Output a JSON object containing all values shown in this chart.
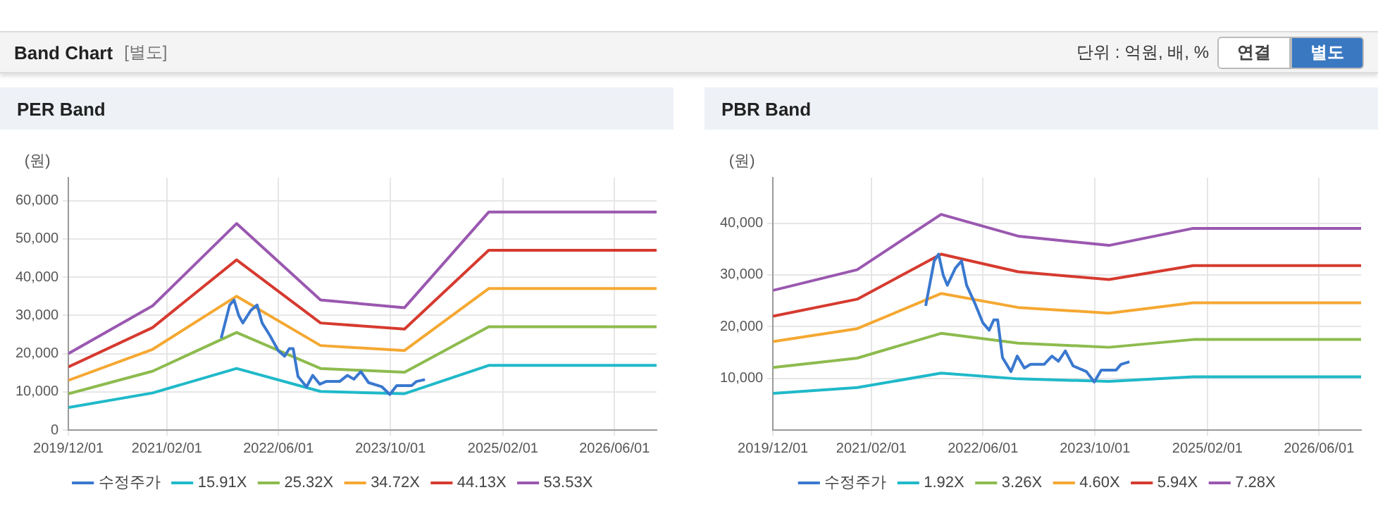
{
  "chart_data": [
    {
      "type": "other",
      "title": "Band Chart",
      "annotations": [
        "[별도]",
        "단위 : 억원, 배, %",
        "연결",
        "별도"
      ]
    },
    {
      "type": "line",
      "title": "PER Band",
      "ylabel": "(원)",
      "xlim": [
        "2019-12-01",
        "2026-12-01"
      ],
      "xticks": [
        {
          "value": "2019-12-01",
          "label": "2019/12/01"
        },
        {
          "value": "2021-02-01",
          "label": "2021/02/01"
        },
        {
          "value": "2022-06-01",
          "label": "2022/06/01"
        },
        {
          "value": "2023-10-01",
          "label": "2023/10/01"
        },
        {
          "value": "2025-02-01",
          "label": "2025/02/01"
        },
        {
          "value": "2026-06-01",
          "label": "2026/06/01"
        }
      ],
      "ylim": [
        0,
        66000
      ],
      "yticks": [
        0,
        {
          "value": 10000,
          "label": "10,000"
        },
        {
          "value": 20000,
          "label": "20,000"
        },
        {
          "value": 30000,
          "label": "30,000"
        },
        {
          "value": 40000,
          "label": "40,000"
        },
        {
          "value": 50000,
          "label": "50,000"
        },
        {
          "value": 60000,
          "label": "60,000"
        }
      ],
      "grid": true,
      "legend": "bottom",
      "marker": "none",
      "line_style": "solid",
      "series": [
        {
          "name": "수정주가",
          "color": "#3a78cf",
          "x": [
            "2021-09-25",
            "2021-11-01",
            "2021-11-20",
            "2021-12-10",
            "2021-12-28",
            "2022-02-01",
            "2022-02-28",
            "2022-03-22",
            "2022-04-25",
            "2022-06-01",
            "2022-06-28",
            "2022-07-18",
            "2022-08-04",
            "2022-08-25",
            "2022-10-01",
            "2022-10-28",
            "2022-11-28",
            "2022-12-25",
            "2023-02-22",
            "2023-03-28",
            "2023-04-25",
            "2023-05-25",
            "2023-06-28",
            "2023-08-25",
            "2023-09-28",
            "2023-10-28",
            "2024-01-01",
            "2024-01-22",
            "2024-02-28"
          ],
          "values": [
            24000,
            32700,
            34000,
            30000,
            28000,
            31300,
            32700,
            28000,
            24700,
            20700,
            19300,
            21300,
            21300,
            14000,
            11300,
            14300,
            12000,
            12700,
            12700,
            14300,
            13300,
            15300,
            12400,
            11300,
            9300,
            11600,
            11600,
            12700,
            13200
          ]
        },
        {
          "name": "15.91X",
          "color": "#1fb9c9",
          "x": [
            "2019-12-01",
            "2020-12-01",
            "2021-12-01",
            "2022-12-01",
            "2023-12-01",
            "2024-12-01",
            "2026-12-01"
          ],
          "values": [
            5900,
            9700,
            16100,
            10100,
            9500,
            16900,
            16900
          ]
        },
        {
          "name": "25.32X",
          "color": "#8dbb4e",
          "x": [
            "2019-12-01",
            "2020-12-01",
            "2021-12-01",
            "2022-12-01",
            "2023-12-01",
            "2024-12-01",
            "2026-12-01"
          ],
          "values": [
            9500,
            15400,
            25500,
            16100,
            15100,
            27000,
            27000
          ]
        },
        {
          "name": "34.72X",
          "color": "#f5a832",
          "x": [
            "2019-12-01",
            "2020-12-01",
            "2021-12-01",
            "2022-12-01",
            "2023-12-01",
            "2024-12-01",
            "2026-12-01"
          ],
          "values": [
            13000,
            21100,
            35000,
            22100,
            20800,
            37000,
            37000
          ]
        },
        {
          "name": "44.13X",
          "color": "#d63a2f",
          "x": [
            "2019-12-01",
            "2020-12-01",
            "2021-12-01",
            "2022-12-01",
            "2023-12-01",
            "2024-12-01",
            "2026-12-01"
          ],
          "values": [
            16500,
            26800,
            44500,
            28000,
            26400,
            47000,
            47000
          ]
        },
        {
          "name": "53.53X",
          "color": "#9a58b0",
          "x": [
            "2019-12-01",
            "2020-12-01",
            "2021-12-01",
            "2022-12-01",
            "2023-12-01",
            "2024-12-01",
            "2026-12-01"
          ],
          "values": [
            20000,
            32500,
            54000,
            34000,
            32000,
            57000,
            57000
          ]
        }
      ]
    },
    {
      "type": "line",
      "title": "PBR Band",
      "ylabel": "(원)",
      "xlim": [
        "2019-12-01",
        "2026-12-01"
      ],
      "xticks": [
        {
          "value": "2019-12-01",
          "label": "2019/12/01"
        },
        {
          "value": "2021-02-01",
          "label": "2021/02/01"
        },
        {
          "value": "2022-06-01",
          "label": "2022/06/01"
        },
        {
          "value": "2023-10-01",
          "label": "2023/10/01"
        },
        {
          "value": "2025-02-01",
          "label": "2025/02/01"
        },
        {
          "value": "2026-06-01",
          "label": "2026/06/01"
        }
      ],
      "ylim": [
        0,
        48800
      ],
      "yticks": [
        {
          "value": 10000,
          "label": "10,000"
        },
        {
          "value": 20000,
          "label": "20,000"
        },
        {
          "value": 30000,
          "label": "30,000"
        },
        {
          "value": 40000,
          "label": "40,000"
        }
      ],
      "grid": true,
      "legend": "bottom",
      "marker": "none",
      "line_style": "solid",
      "series": [
        {
          "name": "수정주가",
          "color": "#3a78cf",
          "x": [
            "2021-09-25",
            "2021-11-01",
            "2021-11-20",
            "2021-12-10",
            "2021-12-28",
            "2022-02-01",
            "2022-02-28",
            "2022-03-22",
            "2022-04-25",
            "2022-06-01",
            "2022-06-28",
            "2022-07-18",
            "2022-08-04",
            "2022-08-25",
            "2022-10-01",
            "2022-10-28",
            "2022-11-28",
            "2022-12-25",
            "2023-02-22",
            "2023-03-28",
            "2023-04-25",
            "2023-05-25",
            "2023-06-28",
            "2023-08-25",
            "2023-09-28",
            "2023-10-28",
            "2024-01-01",
            "2024-01-22",
            "2024-02-28"
          ],
          "values": [
            24000,
            32700,
            34000,
            30000,
            28000,
            31300,
            32700,
            28000,
            24700,
            20700,
            19300,
            21300,
            21300,
            14000,
            11300,
            14300,
            12000,
            12700,
            12700,
            14300,
            13300,
            15300,
            12400,
            11300,
            9300,
            11600,
            11600,
            12700,
            13200
          ]
        },
        {
          "name": "1.92X",
          "color": "#1fb9c9",
          "x": [
            "2019-12-01",
            "2020-12-01",
            "2021-12-01",
            "2022-11-01",
            "2023-12-01",
            "2024-12-01",
            "2026-12-01"
          ],
          "values": [
            7100,
            8200,
            11000,
            9900,
            9400,
            10300,
            10300
          ]
        },
        {
          "name": "3.26X",
          "color": "#8dbb4e",
          "x": [
            "2019-12-01",
            "2020-12-01",
            "2021-12-01",
            "2022-11-01",
            "2023-12-01",
            "2024-12-01",
            "2026-12-01"
          ],
          "values": [
            12100,
            13900,
            18700,
            16800,
            16000,
            17500,
            17500
          ]
        },
        {
          "name": "4.60X",
          "color": "#f5a832",
          "x": [
            "2019-12-01",
            "2020-12-01",
            "2021-12-01",
            "2022-11-01",
            "2023-12-01",
            "2024-12-01",
            "2026-12-01"
          ],
          "values": [
            17100,
            19600,
            26400,
            23700,
            22600,
            24600,
            24600
          ]
        },
        {
          "name": "5.94X",
          "color": "#d63a2f",
          "x": [
            "2019-12-01",
            "2020-12-01",
            "2021-12-01",
            "2022-11-01",
            "2023-12-01",
            "2024-12-01",
            "2026-12-01"
          ],
          "values": [
            22000,
            25300,
            34000,
            30600,
            29100,
            31800,
            31800
          ]
        },
        {
          "name": "7.28X",
          "color": "#9a58b0",
          "x": [
            "2019-12-01",
            "2020-12-01",
            "2021-12-01",
            "2022-11-01",
            "2023-12-01",
            "2024-12-01",
            "2026-12-01"
          ],
          "values": [
            27000,
            31000,
            41700,
            37500,
            35700,
            39000,
            39000
          ]
        }
      ]
    }
  ]
}
